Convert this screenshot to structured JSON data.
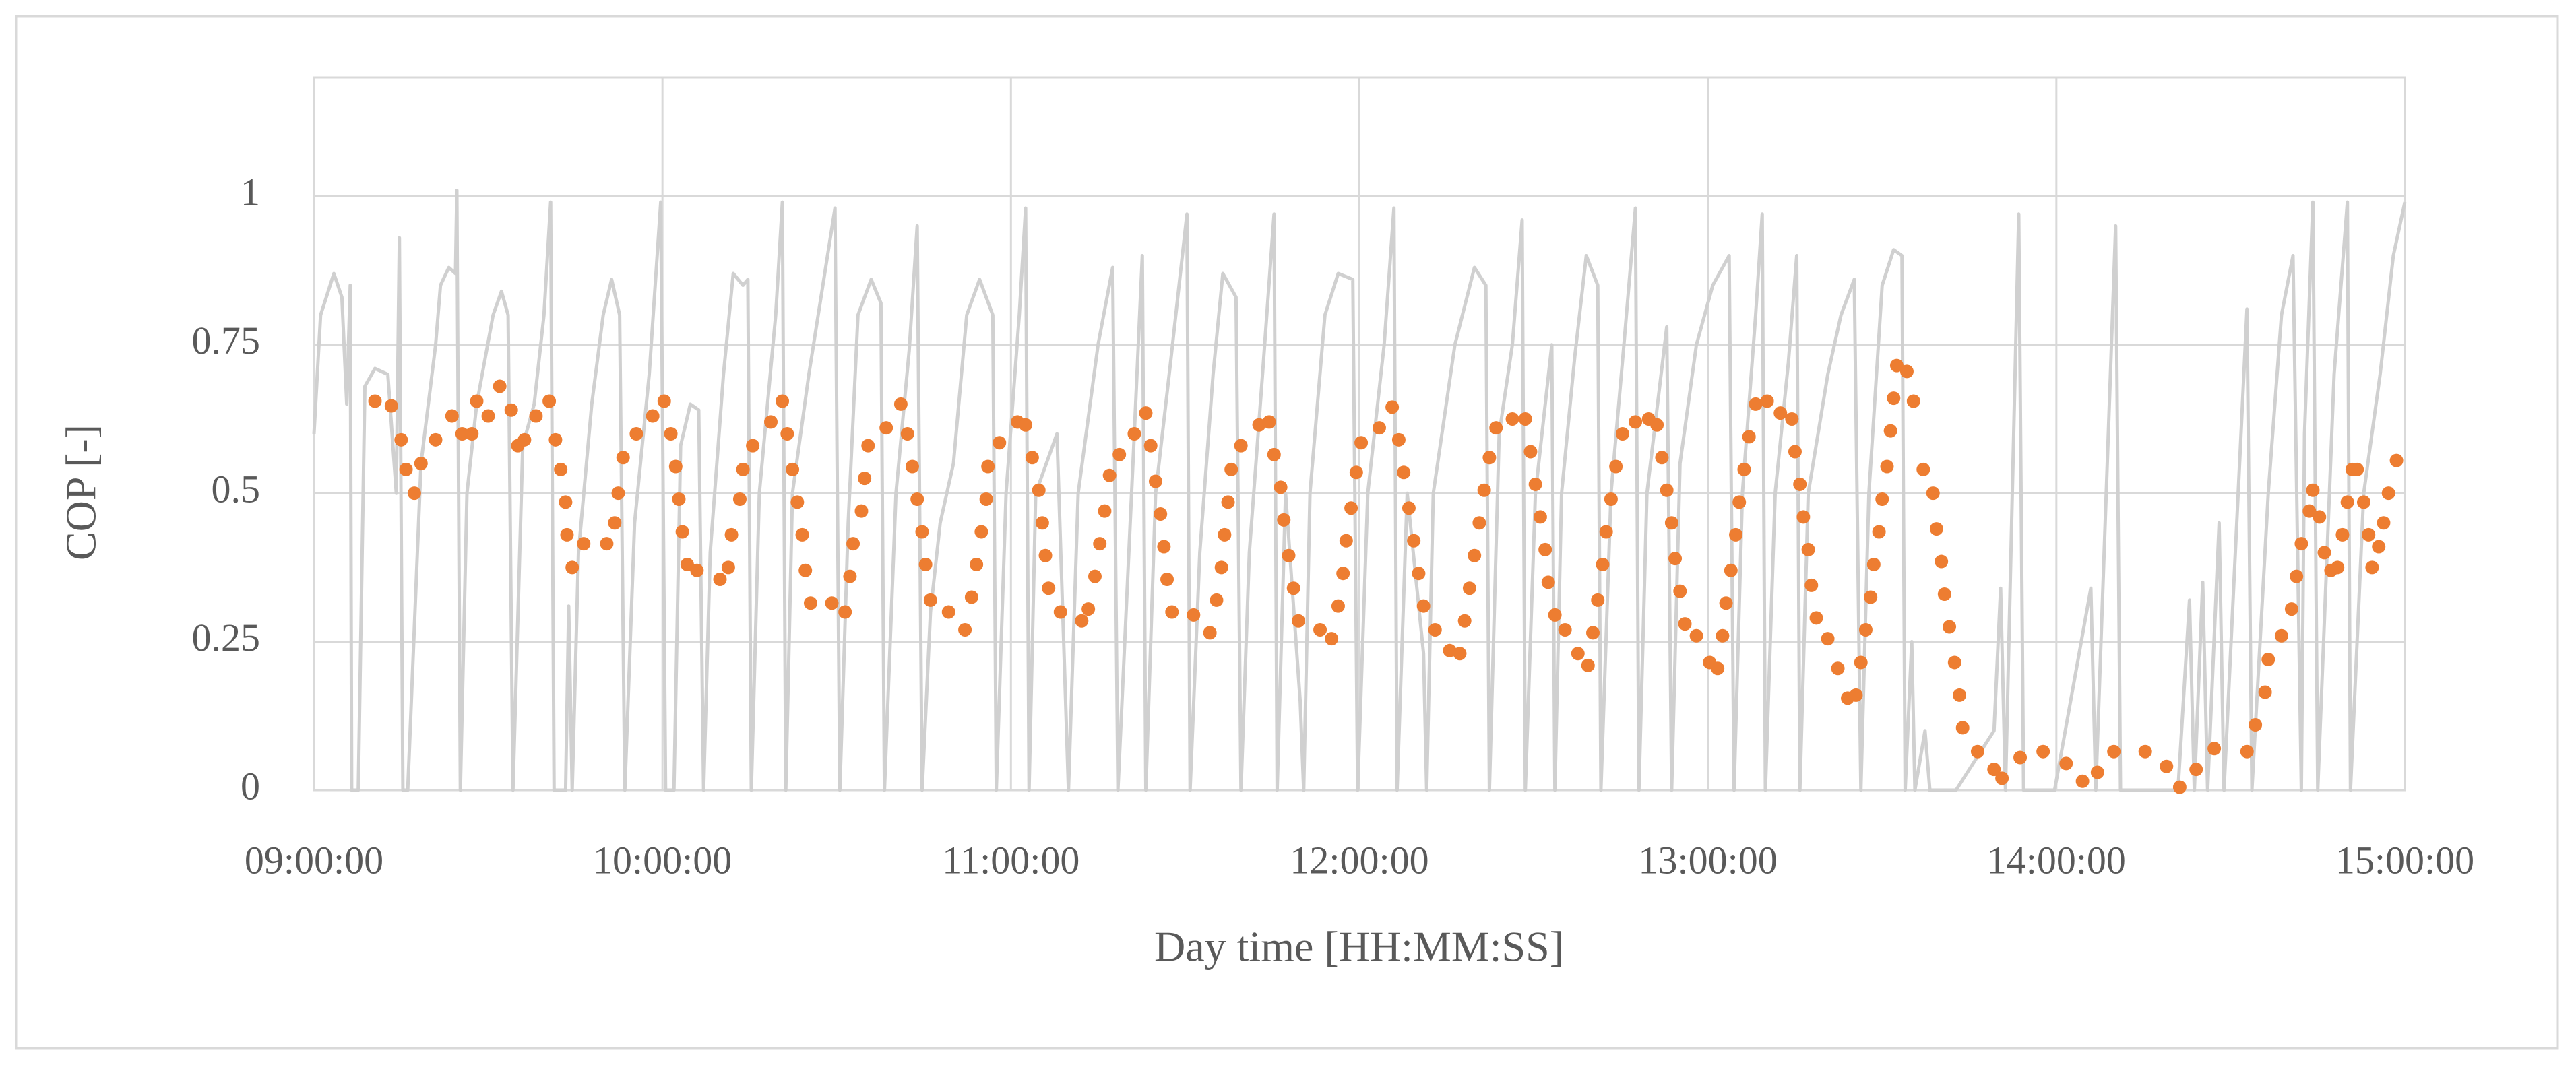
{
  "chart_data": {
    "type": "scatter",
    "xlabel": "Day time [HH:MM:SS]",
    "ylabel": "COP [-]",
    "xlim": [
      9,
      15
    ],
    "ylim": [
      0,
      1.2
    ],
    "xticks": [
      {
        "value": 9,
        "label": "09:00:00"
      },
      {
        "value": 10,
        "label": "10:00:00"
      },
      {
        "value": 11,
        "label": "11:00:00"
      },
      {
        "value": 12,
        "label": "12:00:00"
      },
      {
        "value": 13,
        "label": "13:00:00"
      },
      {
        "value": 14,
        "label": "14:00:00"
      },
      {
        "value": 15,
        "label": "15:00:00"
      }
    ],
    "yticks": [
      0,
      0.25,
      0.5,
      0.75,
      1
    ],
    "grid": true,
    "series": [
      {
        "type": "line",
        "color": "#d0d0d0",
        "x": [
          9.0,
          9.019,
          9.057,
          9.08,
          9.094,
          9.104,
          9.108,
          9.127,
          9.146,
          9.175,
          9.212,
          9.236,
          9.245,
          9.255,
          9.269,
          9.307,
          9.349,
          9.363,
          9.387,
          9.406,
          9.41,
          9.42,
          9.439,
          9.467,
          9.514,
          9.538,
          9.557,
          9.571,
          9.599,
          9.632,
          9.66,
          9.679,
          9.689,
          9.722,
          9.731,
          9.741,
          9.759,
          9.797,
          9.83,
          9.854,
          9.877,
          9.892,
          9.92,
          9.962,
          9.995,
          10.009,
          10.033,
          10.052,
          10.08,
          10.104,
          10.118,
          10.137,
          10.175,
          10.203,
          10.231,
          10.245,
          10.255,
          10.278,
          10.325,
          10.344,
          10.354,
          10.373,
          10.42,
          10.495,
          10.509,
          10.533,
          10.561,
          10.599,
          10.627,
          10.637,
          10.67,
          10.708,
          10.731,
          10.745,
          10.769,
          10.797,
          10.835,
          10.873,
          10.91,
          10.948,
          10.958,
          10.986,
          11.024,
          11.042,
          11.052,
          11.071,
          11.132,
          11.165,
          11.193,
          11.25,
          11.292,
          11.307,
          11.354,
          11.377,
          11.387,
          11.415,
          11.458,
          11.505,
          11.514,
          11.542,
          11.58,
          11.608,
          11.646,
          11.66,
          11.684,
          11.722,
          11.755,
          11.764,
          11.788,
          11.83,
          11.84,
          11.858,
          11.901,
          11.939,
          11.981,
          11.995,
          12.024,
          12.071,
          12.099,
          12.108,
          12.137,
          12.184,
          12.193,
          12.212,
          12.274,
          12.33,
          12.363,
          12.373,
          12.401,
          12.439,
          12.467,
          12.476,
          12.505,
          12.552,
          12.561,
          12.58,
          12.618,
          12.651,
          12.684,
          12.693,
          12.722,
          12.759,
          12.792,
          12.802,
          12.825,
          12.882,
          12.896,
          12.92,
          12.967,
          13.014,
          13.061,
          13.075,
          13.099,
          13.137,
          13.156,
          13.165,
          13.193,
          13.231,
          13.255,
          13.264,
          13.288,
          13.344,
          13.382,
          13.42,
          13.439,
          13.462,
          13.5,
          13.533,
          13.557,
          13.566,
          13.585,
          13.594,
          13.623,
          13.637,
          13.712,
          13.821,
          13.84,
          13.854,
          13.892,
          13.906,
          13.995,
          14.099,
          14.113,
          14.17,
          14.184,
          14.349,
          14.382,
          14.396,
          14.42,
          14.434,
          14.467,
          14.481,
          14.547,
          14.561,
          14.608,
          14.646,
          14.679,
          14.703,
          14.712,
          14.736,
          14.75,
          14.797,
          14.835,
          14.844,
          14.882,
          14.929,
          14.967,
          15
        ],
        "values": [
          0.6,
          0.8,
          0.87,
          0.83,
          0.65,
          0.85,
          0,
          0,
          0.68,
          0.71,
          0.7,
          0.5,
          0.93,
          0,
          0,
          0.55,
          0.75,
          0.85,
          0.88,
          0.87,
          1.01,
          0,
          0.5,
          0.65,
          0.8,
          0.84,
          0.8,
          0,
          0.58,
          0.65,
          0.8,
          0.99,
          0,
          0,
          0.31,
          0,
          0.4,
          0.65,
          0.8,
          0.86,
          0.8,
          0,
          0.45,
          0.7,
          0.99,
          0,
          0,
          0.58,
          0.65,
          0.64,
          0,
          0.4,
          0.7,
          0.87,
          0.85,
          0.86,
          0,
          0.5,
          0.8,
          0.99,
          0,
          0.5,
          0.7,
          0.98,
          0,
          0.45,
          0.8,
          0.86,
          0.82,
          0,
          0.5,
          0.74,
          0.95,
          0,
          0.3,
          0.45,
          0.55,
          0.8,
          0.86,
          0.8,
          0,
          0.5,
          0.8,
          0.98,
          0,
          0.5,
          0.6,
          0,
          0.5,
          0.75,
          0.88,
          0,
          0.6,
          0.9,
          0,
          0.5,
          0.72,
          0.97,
          0,
          0.4,
          0.7,
          0.87,
          0.83,
          0,
          0.4,
          0.7,
          0.97,
          0,
          0.5,
          0.15,
          0,
          0.5,
          0.8,
          0.87,
          0.86,
          0,
          0.5,
          0.75,
          0.98,
          0,
          0.5,
          0.23,
          0,
          0.5,
          0.75,
          0.88,
          0.85,
          0,
          0.6,
          0.75,
          0.96,
          0,
          0.5,
          0.75,
          0,
          0.5,
          0.73,
          0.9,
          0.85,
          0,
          0.5,
          0.75,
          0.98,
          0,
          0.5,
          0.78,
          0,
          0.55,
          0.75,
          0.85,
          0.9,
          0,
          0.5,
          0.8,
          0.97,
          0,
          0.5,
          0.72,
          0.9,
          0,
          0.5,
          0.7,
          0.8,
          0.86,
          0,
          0.5,
          0.85,
          0.91,
          0.9,
          0,
          0.25,
          0,
          0.1,
          0,
          0,
          0.1,
          0.34,
          0,
          0.97,
          0,
          0,
          0.34,
          0,
          0.95,
          0,
          0,
          0.32,
          0,
          0.35,
          0,
          0.45,
          0,
          0.81,
          0,
          0.5,
          0.8,
          0.9,
          0,
          0.6,
          0.99,
          0,
          0.7,
          0.99,
          0,
          0.5,
          0.7,
          0.9,
          0.99
        ]
      },
      {
        "type": "scatter",
        "color": "#ed7d31",
        "x": [
          9.175,
          9.222,
          9.25,
          9.264,
          9.288,
          9.307,
          9.349,
          9.396,
          9.425,
          9.453,
          9.467,
          9.5,
          9.533,
          9.566,
          9.585,
          9.604,
          9.637,
          9.675,
          9.693,
          9.708,
          9.722,
          9.726,
          9.741,
          9.774,
          9.84,
          9.863,
          9.873,
          9.887,
          9.925,
          9.972,
          10.005,
          10.024,
          10.038,
          10.047,
          10.057,
          10.071,
          10.099,
          10.165,
          10.189,
          10.198,
          10.222,
          10.231,
          10.259,
          10.311,
          10.344,
          10.358,
          10.373,
          10.387,
          10.401,
          10.41,
          10.425,
          10.486,
          10.524,
          10.538,
          10.547,
          10.571,
          10.58,
          10.59,
          10.642,
          10.684,
          10.703,
          10.717,
          10.731,
          10.745,
          10.755,
          10.769,
          10.821,
          10.868,
          10.887,
          10.901,
          10.915,
          10.929,
          10.934,
          10.967,
          11.019,
          11.042,
          11.061,
          11.08,
          11.09,
          11.099,
          11.108,
          11.142,
          11.203,
          11.222,
          11.241,
          11.255,
          11.269,
          11.283,
          11.311,
          11.354,
          11.387,
          11.401,
          11.415,
          11.429,
          11.439,
          11.448,
          11.462,
          11.524,
          11.571,
          11.59,
          11.604,
          11.613,
          11.623,
          11.632,
          11.66,
          11.712,
          11.741,
          11.755,
          11.774,
          11.783,
          11.797,
          11.811,
          11.825,
          11.887,
          11.92,
          11.939,
          11.953,
          11.962,
          11.976,
          11.991,
          12.005,
          12.057,
          12.094,
          12.113,
          12.127,
          12.142,
          12.156,
          12.17,
          12.184,
          12.217,
          12.259,
          12.288,
          12.302,
          12.316,
          12.33,
          12.344,
          12.358,
          12.373,
          12.392,
          12.439,
          12.476,
          12.491,
          12.505,
          12.519,
          12.533,
          12.542,
          12.561,
          12.59,
          12.627,
          12.656,
          12.67,
          12.684,
          12.698,
          12.708,
          12.722,
          12.736,
          12.755,
          12.792,
          12.83,
          12.854,
          12.868,
          12.882,
          12.896,
          12.906,
          12.92,
          12.934,
          12.967,
          13.005,
          13.028,
          13.042,
          13.052,
          13.066,
          13.08,
          13.09,
          13.104,
          13.118,
          13.137,
          13.17,
          13.208,
          13.241,
          13.25,
          13.264,
          13.274,
          13.288,
          13.297,
          13.311,
          13.344,
          13.373,
          13.401,
          13.425,
          13.439,
          13.453,
          13.467,
          13.476,
          13.491,
          13.5,
          13.514,
          13.524,
          13.533,
          13.542,
          13.571,
          13.59,
          13.618,
          13.646,
          13.656,
          13.67,
          13.679,
          13.693,
          13.708,
          13.722,
          13.731,
          13.774,
          13.821,
          13.844,
          13.896,
          13.962,
          14.028,
          14.075,
          14.118,
          14.165,
          14.255,
          14.316,
          14.354,
          14.401,
          14.453,
          14.547,
          14.571,
          14.599,
          14.608,
          14.646,
          14.675,
          14.689,
          14.703,
          14.726,
          14.736,
          14.755,
          14.769,
          14.788,
          14.807,
          14.821,
          14.835,
          14.849,
          14.863,
          14.882,
          14.896,
          14.906,
          14.925,
          14.939,
          14.953,
          14.976
        ],
        "values": [
          0.655,
          0.647,
          0.59,
          0.54,
          0.5,
          0.55,
          0.59,
          0.63,
          0.6,
          0.6,
          0.655,
          0.63,
          0.68,
          0.64,
          0.58,
          0.59,
          0.63,
          0.655,
          0.59,
          0.54,
          0.485,
          0.43,
          0.375,
          0.415,
          0.415,
          0.45,
          0.5,
          0.56,
          0.6,
          0.63,
          0.655,
          0.6,
          0.545,
          0.49,
          0.435,
          0.38,
          0.37,
          0.355,
          0.375,
          0.43,
          0.49,
          0.54,
          0.58,
          0.62,
          0.655,
          0.6,
          0.54,
          0.485,
          0.43,
          0.37,
          0.315,
          0.315,
          0.3,
          0.36,
          0.415,
          0.47,
          0.525,
          0.58,
          0.61,
          0.65,
          0.6,
          0.545,
          0.49,
          0.435,
          0.38,
          0.32,
          0.3,
          0.27,
          0.325,
          0.38,
          0.435,
          0.49,
          0.545,
          0.585,
          0.62,
          0.615,
          0.56,
          0.505,
          0.45,
          0.395,
          0.34,
          0.3,
          0.285,
          0.305,
          0.36,
          0.415,
          0.47,
          0.53,
          0.565,
          0.6,
          0.635,
          0.58,
          0.52,
          0.465,
          0.41,
          0.355,
          0.3,
          0.295,
          0.265,
          0.32,
          0.375,
          0.43,
          0.485,
          0.54,
          0.58,
          0.615,
          0.62,
          0.565,
          0.51,
          0.455,
          0.395,
          0.34,
          0.285,
          0.27,
          0.255,
          0.31,
          0.365,
          0.42,
          0.475,
          0.535,
          0.585,
          0.61,
          0.645,
          0.59,
          0.535,
          0.475,
          0.42,
          0.365,
          0.31,
          0.27,
          0.235,
          0.23,
          0.285,
          0.34,
          0.395,
          0.45,
          0.505,
          0.56,
          0.61,
          0.625,
          0.625,
          0.57,
          0.515,
          0.46,
          0.405,
          0.35,
          0.295,
          0.27,
          0.23,
          0.21,
          0.265,
          0.32,
          0.38,
          0.435,
          0.49,
          0.545,
          0.6,
          0.62,
          0.625,
          0.615,
          0.56,
          0.505,
          0.45,
          0.39,
          0.335,
          0.28,
          0.26,
          0.215,
          0.205,
          0.26,
          0.315,
          0.37,
          0.43,
          0.485,
          0.54,
          0.595,
          0.65,
          0.655,
          0.635,
          0.625,
          0.57,
          0.515,
          0.46,
          0.405,
          0.345,
          0.29,
          0.255,
          0.205,
          0.155,
          0.16,
          0.215,
          0.27,
          0.325,
          0.38,
          0.435,
          0.49,
          0.545,
          0.605,
          0.66,
          0.715,
          0.705,
          0.655,
          0.54,
          0.5,
          0.44,
          0.385,
          0.33,
          0.275,
          0.215,
          0.16,
          0.105,
          0.065,
          0.035,
          0.02,
          0.055,
          0.065,
          0.045,
          0.015,
          0.03,
          0.065,
          0.065,
          0.04,
          0.005,
          0.035,
          0.07,
          0.065,
          0.11,
          0.165,
          0.22,
          0.26,
          0.305,
          0.36,
          0.415,
          0.47,
          0.505,
          0.46,
          0.4,
          0.37,
          0.375,
          0.43,
          0.485,
          0.54,
          0.54,
          0.485,
          0.43,
          0.375,
          0.41,
          0.45,
          0.5,
          0.555
        ]
      }
    ]
  }
}
